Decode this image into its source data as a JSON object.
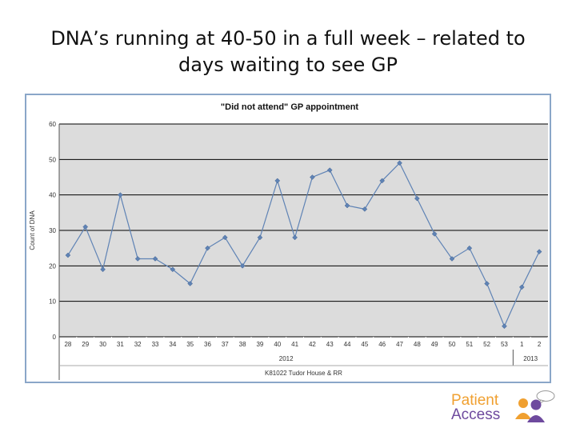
{
  "slide": {
    "title_line1": "DNA’s running at 40-50 in a full week – related to",
    "title_line2": "days waiting to see GP"
  },
  "logo": {
    "line1": "Patient",
    "line2": "Access"
  },
  "colors": {
    "plot_bg": "#dcdcdc",
    "series": "#5f83b5",
    "grid": "#000000",
    "frame": "#8aa6c8",
    "logo_orange": "#f0a030",
    "logo_purple": "#6e4a9e"
  },
  "chart_data": {
    "type": "line",
    "title": "\"Did not attend\" GP appointment",
    "ylabel": "Count of DNA",
    "xlabel": "K81022 Tudor House & RR",
    "ylim": [
      0,
      60
    ],
    "yticks": [
      0,
      10,
      20,
      30,
      40,
      50,
      60
    ],
    "grid": true,
    "legend": "none",
    "categories": [
      "28",
      "29",
      "30",
      "31",
      "32",
      "33",
      "34",
      "35",
      "36",
      "37",
      "38",
      "39",
      "40",
      "41",
      "42",
      "43",
      "44",
      "45",
      "46",
      "47",
      "48",
      "49",
      "50",
      "51",
      "52",
      "53",
      "1",
      "2"
    ],
    "groups": [
      {
        "label": "2012",
        "count": 26
      },
      {
        "label": "2013",
        "count": 2
      }
    ],
    "series": [
      {
        "values": [
          23,
          31,
          19,
          40,
          22,
          22,
          19,
          15,
          25,
          28,
          20,
          28,
          44,
          28,
          45,
          47,
          37,
          36,
          44,
          49,
          39,
          29,
          22,
          25,
          15,
          3,
          14,
          24
        ]
      }
    ]
  }
}
